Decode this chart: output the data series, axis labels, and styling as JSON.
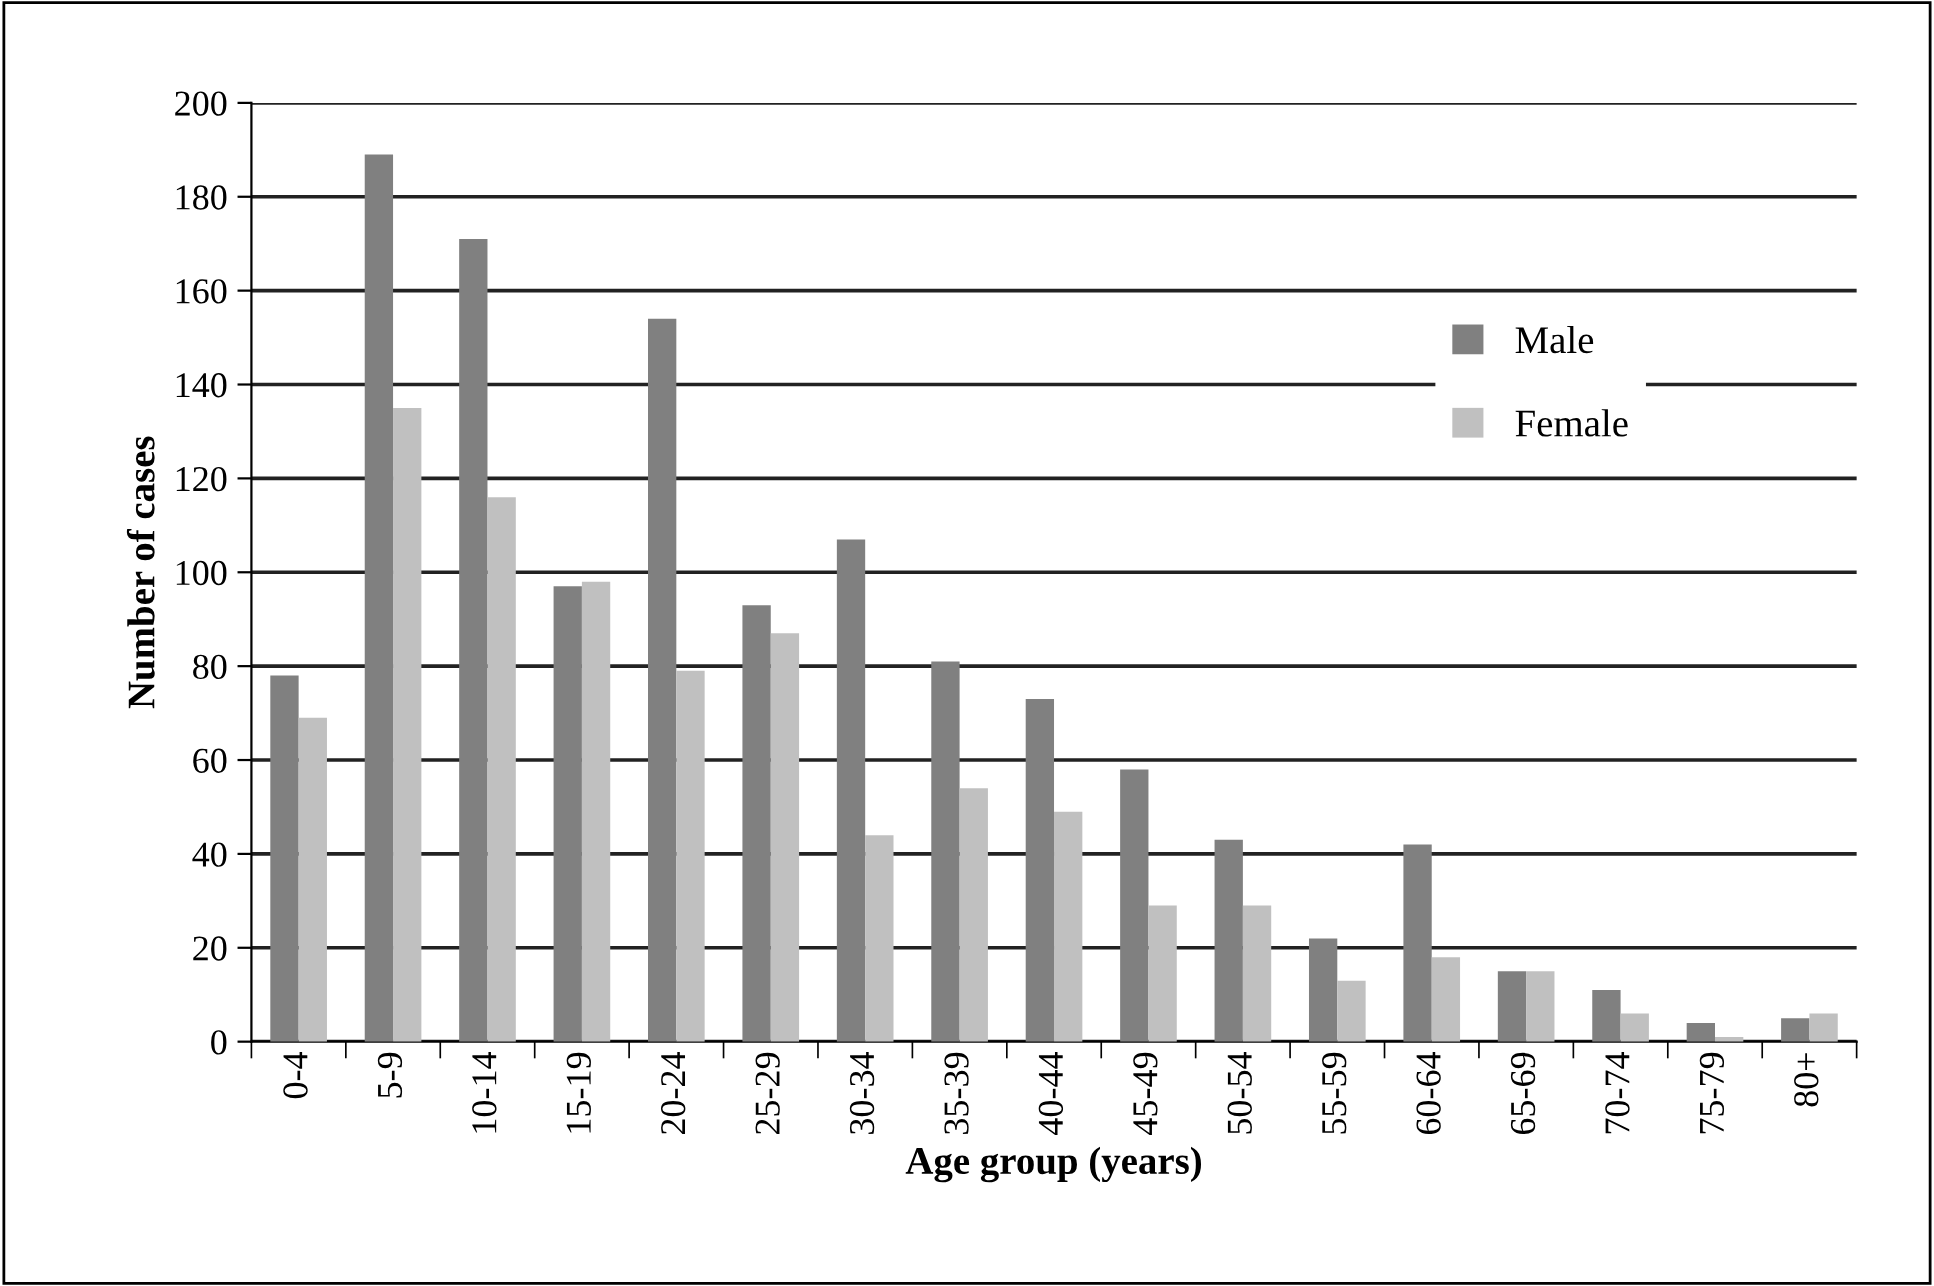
{
  "chart_data": {
    "type": "bar",
    "xlabel": "Age group (years)",
    "ylabel": "Number of cases",
    "categories": [
      "0-4",
      "5-9",
      "10-14",
      "15-19",
      "20-24",
      "25-29",
      "30-34",
      "35-39",
      "40-44",
      "45-49",
      "50-54",
      "55-59",
      "60-64",
      "65-69",
      "70-74",
      "75-79",
      "80+"
    ],
    "series": [
      {
        "name": "Male",
        "color": "#808080",
        "values": [
          78,
          189,
          171,
          97,
          154,
          93,
          107,
          81,
          73,
          58,
          43,
          22,
          42,
          15,
          11,
          4,
          5
        ]
      },
      {
        "name": "Female",
        "color": "#c0c0c0",
        "values": [
          69,
          135,
          116,
          98,
          79,
          87,
          44,
          54,
          49,
          29,
          29,
          13,
          18,
          15,
          6,
          1,
          6
        ]
      }
    ],
    "ylim": [
      0,
      200
    ],
    "yticks": [
      0,
      20,
      40,
      60,
      80,
      100,
      120,
      140,
      160,
      180,
      200
    ],
    "grid": "y",
    "legend": "right"
  }
}
